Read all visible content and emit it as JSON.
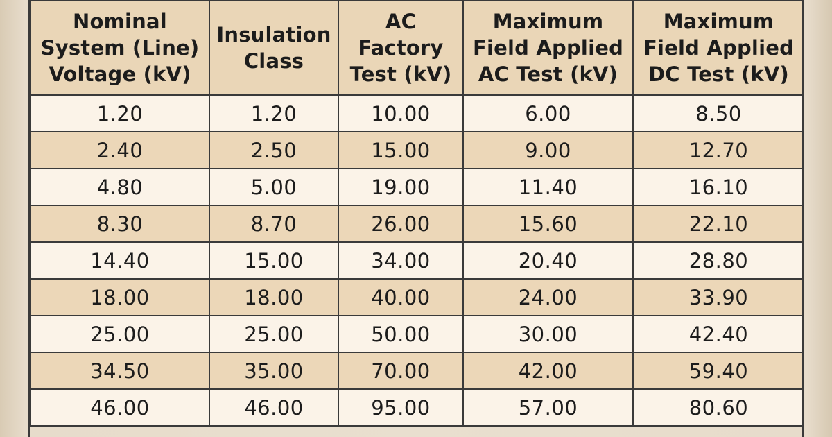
{
  "table": {
    "headers": [
      "Nominal\nSystem (Line)\nVoltage (kV)",
      "Insulation\nClass",
      "AC\nFactory\nTest (kV)",
      "Maximum\nField Applied\nAC Test (kV)",
      "Maximum\nField Applied\nDC Test (kV)"
    ],
    "rows": [
      [
        "1.20",
        "1.20",
        "10.00",
        "6.00",
        "8.50"
      ],
      [
        "2.40",
        "2.50",
        "15.00",
        "9.00",
        "12.70"
      ],
      [
        "4.80",
        "5.00",
        "19.00",
        "11.40",
        "16.10"
      ],
      [
        "8.30",
        "8.70",
        "26.00",
        "15.60",
        "22.10"
      ],
      [
        "14.40",
        "15.00",
        "34.00",
        "20.40",
        "28.80"
      ],
      [
        "18.00",
        "18.00",
        "40.00",
        "24.00",
        "33.90"
      ],
      [
        "25.00",
        "25.00",
        "50.00",
        "30.00",
        "42.40"
      ],
      [
        "34.50",
        "35.00",
        "70.00",
        "42.00",
        "59.40"
      ],
      [
        "46.00",
        "46.00",
        "95.00",
        "57.00",
        "80.60"
      ]
    ]
  }
}
